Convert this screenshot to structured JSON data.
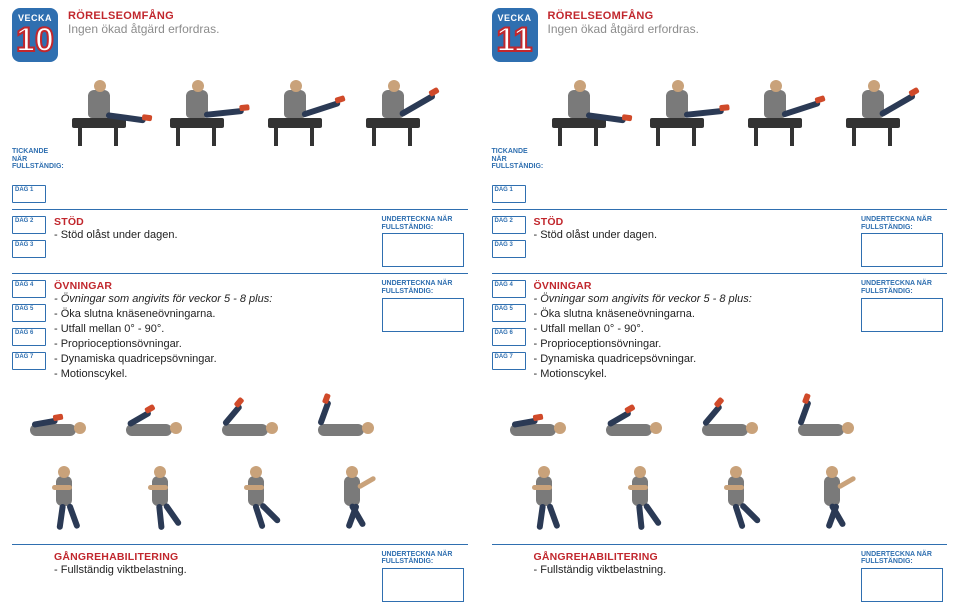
{
  "labels": {
    "vecka": "VECKA",
    "tick_label_l1": "TICKANDE NÄR",
    "tick_label_l2": "FULLSTÄNDIG:",
    "sign_label_l1": "UNDERTECKNA NÄR",
    "sign_label_l2": "FULLSTÄNDIG:"
  },
  "days": {
    "d1": "DAG 1",
    "d2": "DAG 2",
    "d3": "DAG 3",
    "d4": "DAG 4",
    "d5": "DAG 5",
    "d6": "DAG 6",
    "d7": "DAG 7"
  },
  "weeks": [
    {
      "number": "10",
      "header_title": "RÖRELSEOMFÅNG",
      "header_sub": "Ingen ökad åtgärd erfordras.",
      "stod_title": "STÖD",
      "stod_line": "- Stöd olåst under dagen.",
      "ovn_title": "ÖVNINGAR",
      "ovn_lines": [
        "- Övningar som angivits för veckor 5 - 8 plus:",
        "- Öka slutna knäseneövningarna.",
        "- Utfall mellan 0° - 90°.",
        "- Proprioceptionsövningar.",
        "- Dynamiska quadricepsövningar.",
        "- Motionscykel."
      ],
      "gang_title": "GÅNGREHABILITERING",
      "gang_line": "- Fullständig viktbelastning."
    },
    {
      "number": "11",
      "header_title": "RÖRELSEOMFÅNG",
      "header_sub": "Ingen ökad åtgärd erfordras.",
      "stod_title": "STÖD",
      "stod_line": "- Stöd olåst under dagen.",
      "ovn_title": "ÖVNINGAR",
      "ovn_lines": [
        "- Övningar som angivits för veckor 5 - 8 plus:",
        "- Öka slutna knäseneövningarna.",
        "- Utfall mellan 0° - 90°.",
        "- Proprioceptionsövningar.",
        "- Dynamiska quadricepsövningar.",
        "- Motionscykel."
      ],
      "gang_title": "GÅNGREHABILITERING",
      "gang_line": "- Fullständig viktbelastning."
    }
  ],
  "colors": {
    "accent_blue": "#2f6fb0",
    "accent_red": "#c1272d",
    "grey_text": "#8c8c8c",
    "body_text": "#222222",
    "background": "#ffffff"
  }
}
